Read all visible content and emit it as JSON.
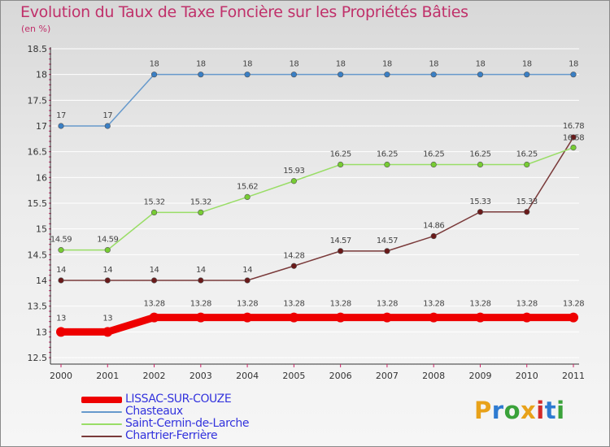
{
  "header": {
    "title": "Evolution du Taux de Taxe Foncière sur les Propriétés Bâties",
    "unit": "(en %)"
  },
  "brand": {
    "letters": [
      "P",
      "r",
      "o",
      "x",
      "i",
      "t",
      "i"
    ],
    "colors": [
      "#e8a21a",
      "#2e7bd1",
      "#3aa23a",
      "#e8a21a",
      "#d22a2a",
      "#2e7bd1",
      "#3aa23a"
    ]
  },
  "chart_data": {
    "type": "line",
    "title": "Evolution du Taux de Taxe Foncière sur les Propriétés Bâties",
    "ylabel": "(en %)",
    "xlabel": "",
    "x": [
      "2000",
      "2001",
      "2002",
      "2003",
      "2004",
      "2005",
      "2006",
      "2007",
      "2008",
      "2009",
      "2010",
      "2011"
    ],
    "ylim": [
      12.5,
      18.5
    ],
    "yticks": [
      "12.5",
      "13",
      "13.5",
      "14",
      "14.5",
      "15",
      "15.5",
      "16",
      "16.5",
      "17",
      "17.5",
      "18",
      "18.5"
    ],
    "grid": "horizontal",
    "series": [
      {
        "name": "LISSAC-SUR-COUZE",
        "color": "#ee0000",
        "highlight": true,
        "values": [
          13,
          13,
          13.28,
          13.28,
          13.28,
          13.28,
          13.28,
          13.28,
          13.28,
          13.28,
          13.28,
          13.28
        ],
        "labels": [
          "13",
          "13",
          "13.28",
          "13.28",
          "13.28",
          "13.28",
          "13.28",
          "13.28",
          "13.28",
          "13.28",
          "13.28",
          "13.28"
        ]
      },
      {
        "name": "Chasteaux",
        "color": "#6699cc",
        "marker": "#3a7fc4",
        "values": [
          17,
          17,
          18,
          18,
          18,
          18,
          18,
          18,
          18,
          18,
          18,
          18
        ],
        "labels": [
          "17",
          "17",
          "18",
          "18",
          "18",
          "18",
          "18",
          "18",
          "18",
          "18",
          "18",
          "18"
        ]
      },
      {
        "name": "Saint-Cernin-de-Larche",
        "color": "#99dd66",
        "marker": "#77cc33",
        "values": [
          14.59,
          14.59,
          15.32,
          15.32,
          15.62,
          15.93,
          16.25,
          16.25,
          16.25,
          16.25,
          16.25,
          16.58
        ],
        "labels": [
          "14.59",
          "14.59",
          "15.32",
          "15.32",
          "15.62",
          "15.93",
          "16.25",
          "16.25",
          "16.25",
          "16.25",
          "16.25",
          "16.58"
        ]
      },
      {
        "name": "Chartrier-Ferrière",
        "color": "#7a3a3a",
        "marker": "#6a1a1a",
        "values": [
          14,
          14,
          14,
          14,
          14,
          14.28,
          14.57,
          14.57,
          14.86,
          15.33,
          15.33,
          16.78
        ],
        "labels": [
          "14",
          "14",
          "14",
          "14",
          "14",
          "14.28",
          "14.57",
          "14.57",
          "14.86",
          "15.33",
          "15.33",
          "16.78"
        ]
      }
    ]
  }
}
